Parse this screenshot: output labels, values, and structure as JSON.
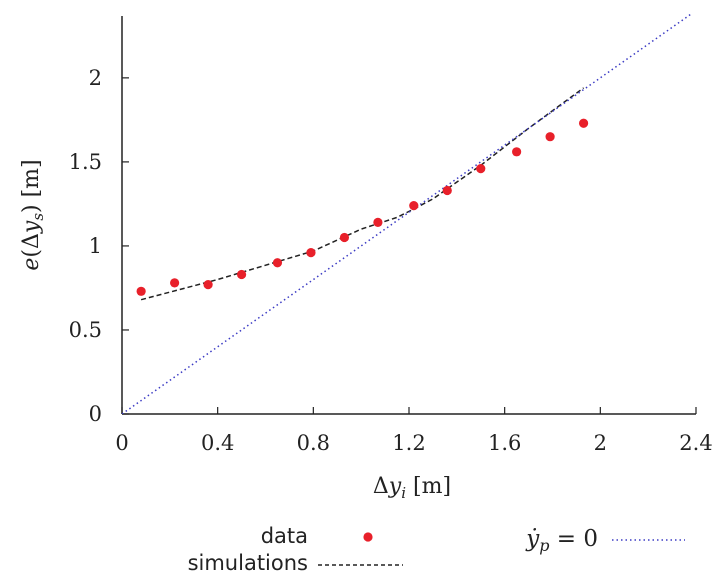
{
  "chart_data": {
    "type": "scatter",
    "xlabel": "Δy_i [m]",
    "ylabel": "e(Δy_s) [m]",
    "xlim": [
      0,
      2.4
    ],
    "ylim": [
      0,
      2.38
    ],
    "xticks": [
      "0",
      "0.4",
      "0.8",
      "1.2",
      "1.6",
      "2",
      "2.4"
    ],
    "yticks": [
      "0",
      "0.5",
      "1",
      "1.5",
      "2"
    ],
    "grid": false,
    "legend_position": "bottom",
    "series": [
      {
        "name": "data",
        "kind": "scatter",
        "color": "#e8202a",
        "x": [
          0.08,
          0.22,
          0.36,
          0.5,
          0.65,
          0.79,
          0.93,
          1.07,
          1.22,
          1.36,
          1.5,
          1.65,
          1.79,
          1.93
        ],
        "y": [
          0.73,
          0.78,
          0.77,
          0.83,
          0.9,
          0.96,
          1.05,
          1.14,
          1.24,
          1.33,
          1.46,
          1.56,
          1.65,
          1.73
        ]
      },
      {
        "name": "simulations",
        "kind": "line",
        "style": "dashed",
        "color": "#222222",
        "x": [
          0.08,
          0.4,
          0.8,
          1.0,
          1.15,
          1.22,
          1.3,
          1.5,
          1.7,
          1.93
        ],
        "y": [
          0.68,
          0.8,
          0.97,
          1.1,
          1.17,
          1.22,
          1.28,
          1.48,
          1.7,
          1.94
        ]
      },
      {
        "name": "ẏ_p = 0",
        "kind": "line",
        "style": "dotted",
        "color": "#3b3bc4",
        "x": [
          0,
          2.4
        ],
        "y": [
          0,
          2.4
        ]
      }
    ]
  },
  "legend": {
    "data_label": "data",
    "simulations_label": "simulations"
  }
}
